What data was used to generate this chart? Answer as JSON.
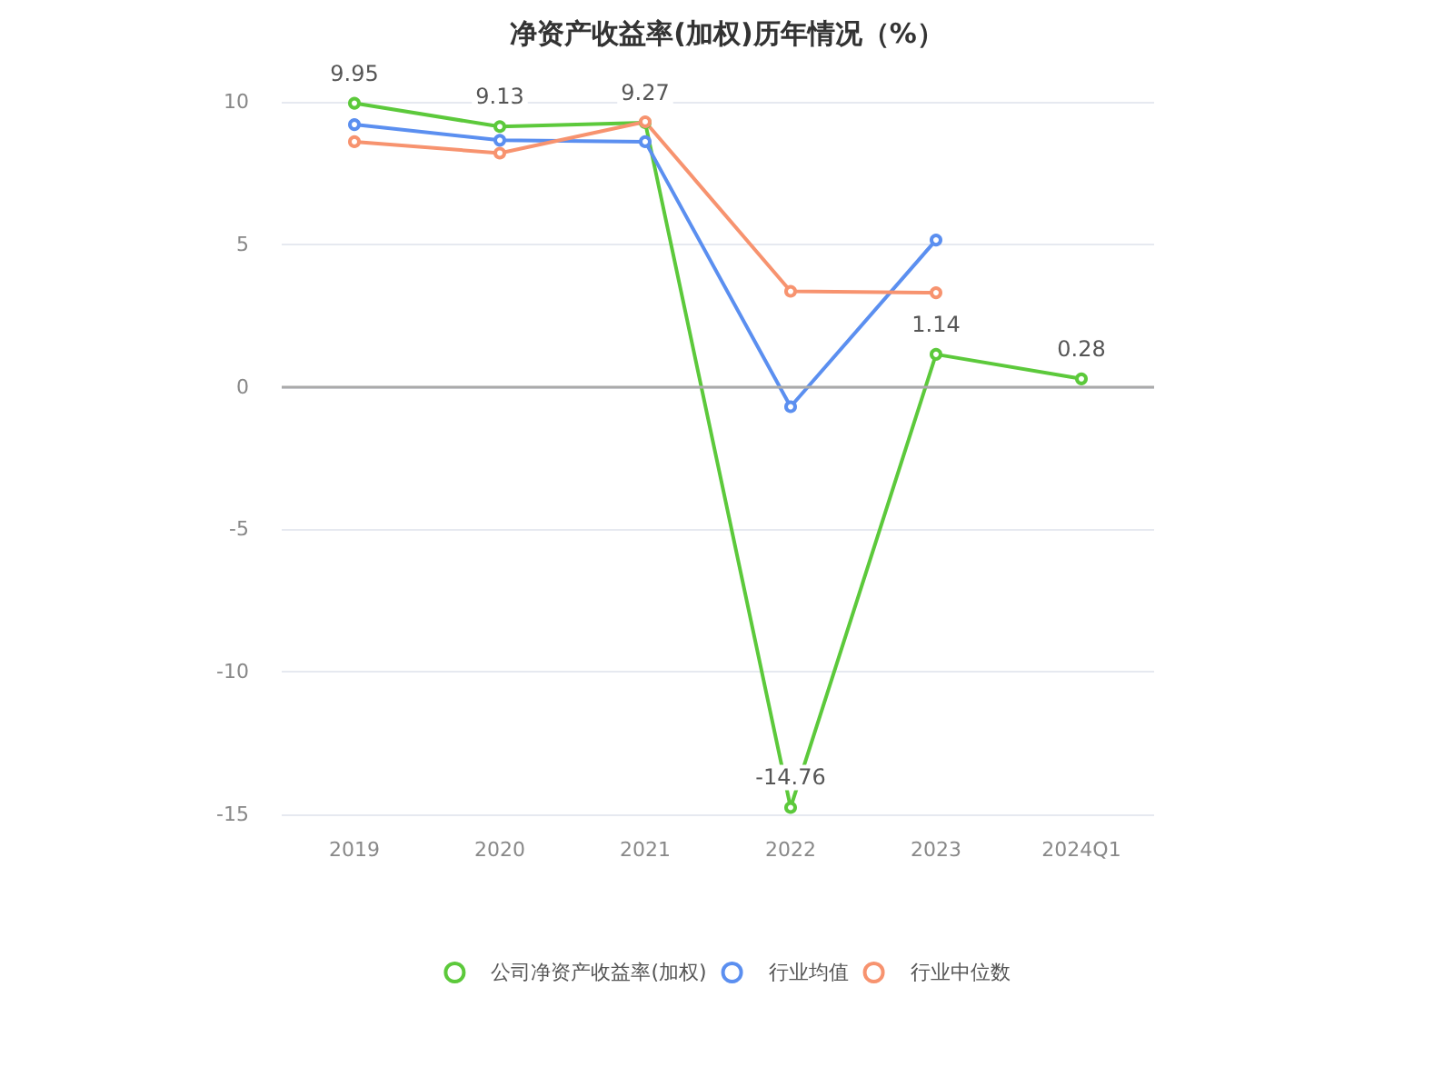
{
  "chart_data": {
    "type": "line",
    "title": "净资产收益率(加权)历年情况（%）",
    "categories": [
      "2019",
      "2020",
      "2021",
      "2022",
      "2023",
      "2024Q1"
    ],
    "series": [
      {
        "name": "公司净资产收益率(加权)",
        "color": "#5cc93b",
        "values": [
          9.95,
          9.13,
          9.27,
          -14.76,
          1.14,
          0.28
        ],
        "value_labels": [
          "9.95",
          "9.13",
          "9.27",
          "-14.76",
          "1.14",
          "0.28"
        ]
      },
      {
        "name": "行业均值",
        "color": "#5b8ff0",
        "values": [
          9.2,
          8.65,
          8.6,
          -0.7,
          5.15,
          null
        ]
      },
      {
        "name": "行业中位数",
        "color": "#f7936f",
        "values": [
          8.6,
          8.2,
          9.3,
          3.35,
          3.3,
          null
        ]
      }
    ],
    "ylim": [
      -15,
      10
    ],
    "yticks": [
      -15,
      -10,
      -5,
      0,
      5,
      10
    ],
    "grid": "y",
    "legend": "bottom",
    "marker": "circle",
    "line_style": "solid"
  }
}
